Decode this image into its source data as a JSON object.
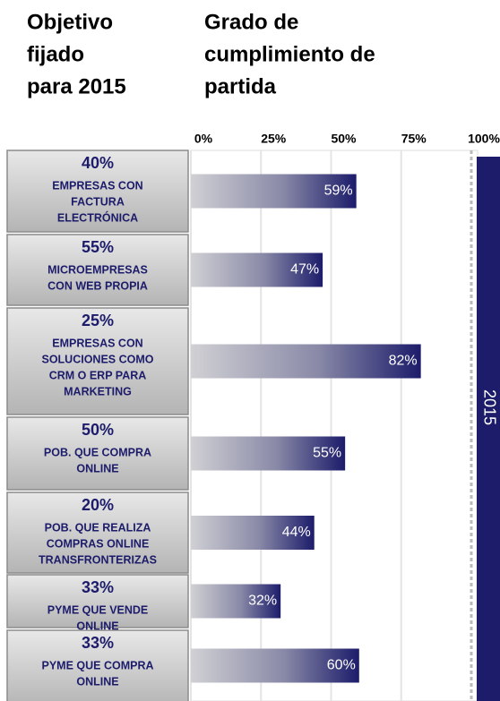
{
  "chart_data": {
    "type": "bar",
    "left_header": [
      "Objetivo",
      "fijado",
      "para 2015"
    ],
    "title": [
      "Grado de",
      "cumplimiento de",
      "partida"
    ],
    "band_label": "2015",
    "categories": [
      [
        "EMPRESAS CON",
        "FACTURA",
        "ELECTRÓNICA"
      ],
      [
        "MICROEMPRESAS",
        "CON WEB PROPIA"
      ],
      [
        "EMPRESAS CON",
        "SOLUCIONES COMO",
        "CRM O ERP PARA",
        "MARKETING"
      ],
      [
        "POB. QUE COMPRA",
        "ONLINE"
      ],
      [
        "POB. QUE REALIZA",
        "COMPRAS ONLINE",
        "TRANSFRONTERIZAS"
      ],
      [
        "PYME QUE VENDE",
        "ONLINE"
      ],
      [
        "PYME QUE COMPRA",
        "ONLINE"
      ]
    ],
    "targets": [
      40,
      55,
      25,
      50,
      20,
      33,
      33
    ],
    "target_labels": [
      "40%",
      "55%",
      "25%",
      "50%",
      "20%",
      "33%",
      "33%"
    ],
    "values": [
      59,
      47,
      82,
      55,
      44,
      32,
      60
    ],
    "value_labels": [
      "59%",
      "47%",
      "82%",
      "55%",
      "44%",
      "32%",
      "60%"
    ],
    "color": "#1c1c6b",
    "xlim": [
      0,
      100
    ],
    "xticks": [
      {
        "value": 0,
        "label": "0%"
      },
      {
        "value": 25,
        "label": "25%"
      },
      {
        "value": 50,
        "label": "50%"
      },
      {
        "value": 75,
        "label": "75%"
      },
      {
        "value": 100,
        "label": "100%"
      }
    ],
    "grid": true
  }
}
